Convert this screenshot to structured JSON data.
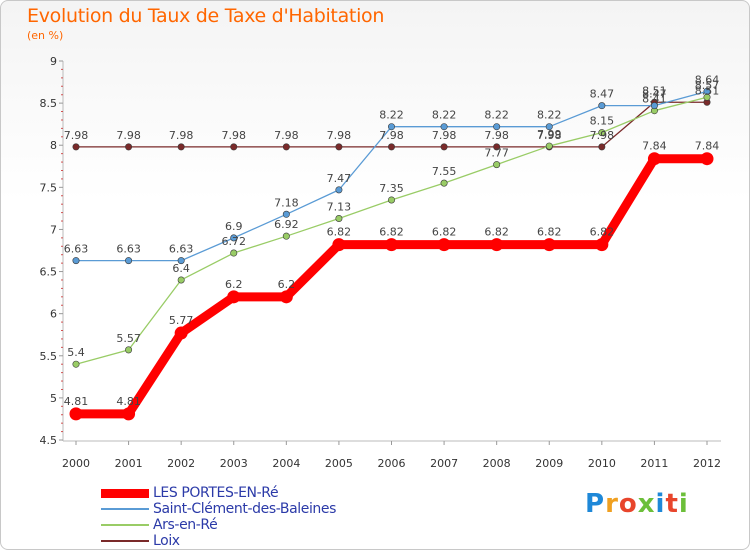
{
  "title": "Evolution du Taux de Taxe d'Habitation",
  "subtitle": "(en %)",
  "logo": {
    "text": "Proxiti",
    "letter_colors": [
      "#1e88d8",
      "#f0a020",
      "#e8452c",
      "#6cbf3a",
      "#1e88d8",
      "#e8452c",
      "#6cbf3a"
    ]
  },
  "chart_data": {
    "type": "line",
    "x": [
      "2000",
      "2001",
      "2002",
      "2003",
      "2004",
      "2005",
      "2006",
      "2007",
      "2008",
      "2009",
      "2010",
      "2011",
      "2012"
    ],
    "ylim": [
      4.5,
      9
    ],
    "yticks": [
      "4.5",
      "5",
      "5.5",
      "6",
      "6.5",
      "7",
      "7.5",
      "8",
      "8.5",
      "9"
    ],
    "grid": false,
    "legend_position": "bottom",
    "series": [
      {
        "name": "Loix",
        "color": "#7a2a2a",
        "values": [
          7.98,
          7.98,
          7.98,
          7.98,
          7.98,
          7.98,
          7.98,
          7.98,
          7.98,
          7.98,
          7.98,
          8.51,
          8.51
        ],
        "labels": [
          "7.98",
          "7.98",
          "7.98",
          "7.98",
          "7.98",
          "7.98",
          "7.98",
          "7.98",
          "7.98",
          "7.98",
          "7.98",
          "8.51",
          "8.51"
        ]
      },
      {
        "name": "Ars-en-Ré",
        "color": "#99cc66",
        "values": [
          5.4,
          5.57,
          6.4,
          6.72,
          6.92,
          7.13,
          7.35,
          7.55,
          7.77,
          7.99,
          8.15,
          8.41,
          8.57
        ],
        "labels": [
          "5.4",
          "5.57",
          "6.4",
          "6.72",
          "6.92",
          "7.13",
          "7.35",
          "7.55",
          "7.77",
          "7.99",
          "8.15",
          "8.41",
          "8.57"
        ]
      },
      {
        "name": "Saint-Clément-des-Baleines",
        "color": "#5a9bd5",
        "values": [
          6.63,
          6.63,
          6.63,
          6.9,
          7.18,
          7.47,
          8.22,
          8.22,
          8.22,
          8.22,
          8.47,
          8.47,
          8.64
        ],
        "labels": [
          "6.63",
          "6.63",
          "6.63",
          "6.9",
          "7.18",
          "7.47",
          "8.22",
          "8.22",
          "8.22",
          "8.22",
          "8.47",
          "8.47",
          "8.64"
        ]
      },
      {
        "name": "LES PORTES-EN-Ré",
        "color": "#ff0000",
        "values": [
          4.81,
          4.81,
          5.77,
          6.2,
          6.2,
          6.82,
          6.82,
          6.82,
          6.82,
          6.82,
          6.82,
          7.84,
          7.84
        ],
        "labels": [
          "4.81",
          "4.81",
          "5.77",
          "6.2",
          "6.2",
          "6.82",
          "6.82",
          "6.82",
          "6.82",
          "6.82",
          "6.82",
          "7.84",
          "7.84"
        ]
      }
    ],
    "legend": [
      {
        "name": "LES PORTES-EN-Ré",
        "color": "#ff0000",
        "thick": true
      },
      {
        "name": "Saint-Clément-des-Baleines",
        "color": "#5a9bd5",
        "thick": false
      },
      {
        "name": "Ars-en-Ré",
        "color": "#99cc66",
        "thick": false
      },
      {
        "name": "Loix",
        "color": "#7a2a2a",
        "thick": false
      }
    ]
  }
}
